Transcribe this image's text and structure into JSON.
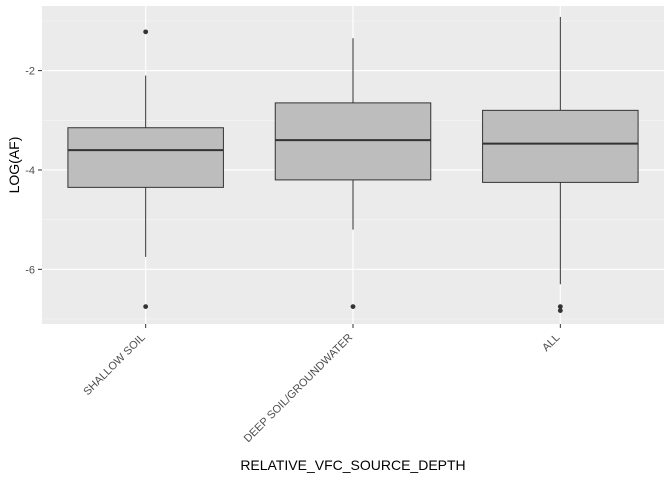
{
  "chart_data": {
    "type": "boxplot",
    "xlabel": "RELATIVE_VFC_SOURCE_DEPTH",
    "ylabel": "LOG(AF)",
    "ylim": [
      -7.1,
      -0.7
    ],
    "yticks": [
      -6,
      -4,
      -2
    ],
    "y_tick_labels": [
      "-6",
      "-4",
      "-2"
    ],
    "grid": true,
    "categories": [
      "SHALLOW SOIL",
      "DEEP SOIL/GROUNDWATER",
      "ALL"
    ],
    "boxes": [
      {
        "category": "SHALLOW SOIL",
        "whisker_low": -5.75,
        "q1": -4.35,
        "median": -3.6,
        "q3": -3.15,
        "whisker_high": -2.1,
        "outliers": [
          -1.22,
          -6.75
        ]
      },
      {
        "category": "DEEP SOIL/GROUNDWATER",
        "whisker_low": -5.2,
        "q1": -4.2,
        "median": -3.4,
        "q3": -2.65,
        "whisker_high": -1.35,
        "outliers": [
          -6.75
        ]
      },
      {
        "category": "ALL",
        "whisker_low": -6.3,
        "q1": -4.25,
        "median": -3.47,
        "q3": -2.8,
        "whisker_high": -0.92,
        "outliers": [
          -6.75,
          -6.83
        ]
      }
    ],
    "colors": {
      "panel": "#ebebeb",
      "grid_major": "#ffffff",
      "grid_minor": "#f5f5f5",
      "box_fill": "#bdbdbd",
      "stroke": "#333333"
    }
  }
}
